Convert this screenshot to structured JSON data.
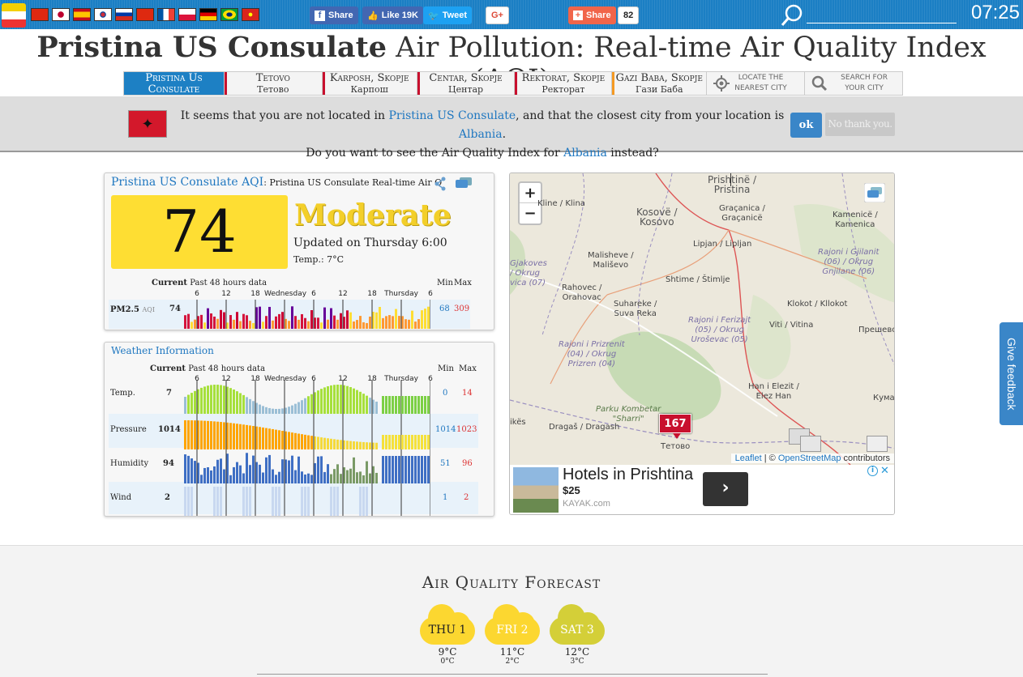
{
  "topbar": {
    "clock": "07:25",
    "share_fb": "Share",
    "like": "Like 19K",
    "tweet": "Tweet",
    "gplus": "G+",
    "share2": "Share",
    "share_count": "82"
  },
  "page_title": {
    "bold": "Pristina US Consulate",
    "rest": " Air Pollution: Real-time Air Quality Index (AQI)"
  },
  "nav": [
    {
      "label": "Pristina Us",
      "sub": "Consulate",
      "color": "#1d80c4"
    },
    {
      "label": "Tetovo",
      "sub": "Тетово",
      "color": "#c8102e"
    },
    {
      "label": "Karposh, Skopje",
      "sub": "Карпош",
      "color": "#c8102e"
    },
    {
      "label": "Centar, Skopje",
      "sub": "Центар",
      "color": "#c8102e"
    },
    {
      "label": "Rektorat, Skopje",
      "sub": "Ректорат",
      "color": "#c8102e"
    },
    {
      "label": "Gazi Baba, Skopje",
      "sub": "Гази Баба",
      "color": "#f59a23"
    }
  ],
  "nav_tools": {
    "locate_1": "LOCATE THE",
    "locate_2": "NEAREST CITY",
    "search_1": "SEARCH FOR",
    "search_2": "YOUR CITY"
  },
  "notice": {
    "line1_a": "It seems that you are not located in ",
    "line1_city": "Pristina US Consulate",
    "line1_b": ", and that the closest city from your location is ",
    "line1_loc": "Albania",
    "line1_c": ".",
    "line2_a": "Do you want to see the Air Quality Index for ",
    "line2_loc": "Albania",
    "line2_b": " instead?",
    "ok": "ok",
    "no": "No thank you."
  },
  "aqi": {
    "title": "Pristina US Consulate AQI",
    "title_rest": ": Pristina US Consulate Real-time Air Q",
    "value": "74",
    "level": "Moderate",
    "updated": "Updated on Thursday 6:00",
    "temp": "Temp.: 7°C",
    "hdr_current": "Current",
    "hdr_past": "Past 48 hours data",
    "hdr_min": "Min",
    "hdr_max": "Max",
    "ticks": [
      "6",
      "12",
      "18",
      "Wednesday",
      "6",
      "12",
      "18",
      "Thursday",
      "6"
    ],
    "pm_label": "PM2.5",
    "pm_unit": "AQI",
    "pm_current": "74",
    "pm_min": "68",
    "pm_max": "309"
  },
  "weather": {
    "title": "Weather Information",
    "hdr_current": "Current",
    "hdr_past": "Past 48 hours data",
    "hdr_min": "Min",
    "hdr_max": "Max",
    "ticks": [
      "6",
      "12",
      "18",
      "Wednesday",
      "6",
      "12",
      "18",
      "Thursday",
      "6"
    ],
    "rows": [
      {
        "label": "Temp.",
        "current": "7",
        "min": "0",
        "max": "14"
      },
      {
        "label": "Pressure",
        "current": "1014",
        "min": "1014",
        "max": "1023"
      },
      {
        "label": "Humidity",
        "current": "94",
        "min": "51",
        "max": "96"
      },
      {
        "label": "Wind",
        "current": "2",
        "min": "1",
        "max": "2"
      }
    ]
  },
  "map": {
    "zoom_in": "+",
    "zoom_out": "−",
    "marker": "167",
    "places": [
      {
        "t": "Prishtinë /\nPristina"
      },
      {
        "t": "Kline / Klina"
      },
      {
        "t": "Kosovë /\nKosovo"
      },
      {
        "t": "Graçanica /\nGraçanicë"
      },
      {
        "t": "Kamenicë /\nKamenica"
      },
      {
        "t": "Lipjan / Liplјan"
      },
      {
        "t": "Malisheve /\nMališevo"
      },
      {
        "t": "Gjakoves\n/ Okrug\nvica (07)"
      },
      {
        "t": "Rajoni i Gjilanit\n(06) / Okrug\nGnjilane (06)"
      },
      {
        "t": "Shtime / Štimlje"
      },
      {
        "t": "Rahovec /\nOrahovac"
      },
      {
        "t": "Suhareke /\nSuva Reka"
      },
      {
        "t": "Klokot / Kllokot"
      },
      {
        "t": "Rajoni i Ferizajt\n(05) / Okrug\nUroševac (05)"
      },
      {
        "t": "Viti / Vitina"
      },
      {
        "t": "Прешево"
      },
      {
        "t": "Rajoni i Prizrenit\n(04) / Okrug\nPrizren (04)"
      },
      {
        "t": "Han i Elezit /\nElez Han"
      },
      {
        "t": "Parku Kombetar\n\"Sharri\""
      },
      {
        "t": "Dragaš / Dragash"
      },
      {
        "t": "ikës"
      },
      {
        "t": "Тетово"
      },
      {
        "t": "Кума"
      }
    ],
    "attrib_leaflet": "Leaflet",
    "attrib_mid": " | © ",
    "attrib_osm": "OpenStreetMap",
    "attrib_end": " contributors"
  },
  "ad": {
    "title": "Hotels in Prishtina",
    "price": "$25",
    "source": "KAYAK.com"
  },
  "feedback": "Give feedback",
  "forecast": {
    "title": "Air Quality Forecast",
    "days": [
      {
        "day": "THU 1",
        "hi": "9°C",
        "lo": "0°C",
        "color": "#fcd730"
      },
      {
        "day": "FRI 2",
        "hi": "11°C",
        "lo": "2°C",
        "color": "#fcd730"
      },
      {
        "day": "SAT 3",
        "hi": "12°C",
        "lo": "3°C",
        "color": "#d4cf38"
      }
    ]
  }
}
